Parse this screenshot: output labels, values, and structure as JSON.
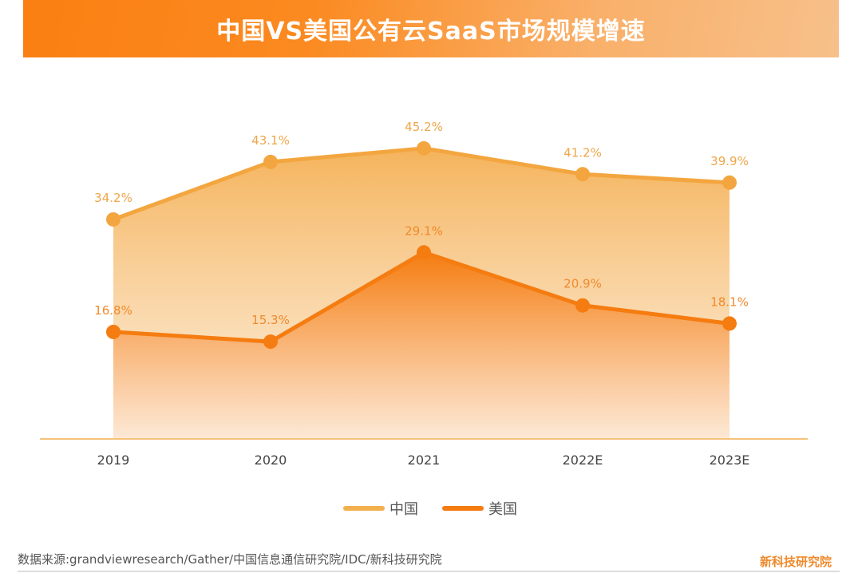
{
  "title": "中国VS美国公有云SaaS市场规模增速",
  "chart_data": {
    "type": "area",
    "title": "中国VS美国公有云SaaS市场规模增速",
    "categories": [
      "2019",
      "2020",
      "2021",
      "2022E",
      "2023E"
    ],
    "ylim": [
      0,
      60
    ],
    "grid": false,
    "legend_placement": "bottom",
    "series": [
      {
        "name": "中国",
        "values": [
          34.2,
          43.1,
          45.2,
          41.2,
          39.9
        ],
        "labels": [
          "34.2%",
          "43.1%",
          "45.2%",
          "41.2%",
          "39.9%"
        ],
        "color": "#f3a63f"
      },
      {
        "name": "美国",
        "values": [
          16.8,
          15.3,
          29.1,
          20.9,
          18.1
        ],
        "labels": [
          "16.8%",
          "15.3%",
          "29.1%",
          "20.9%",
          "18.1%"
        ],
        "color": "#f57c10"
      }
    ]
  },
  "source": "数据来源:grandviewresearch/Gather/中国信息通信研究院/IDC/新科技研究院",
  "brand": "新科技研究院"
}
